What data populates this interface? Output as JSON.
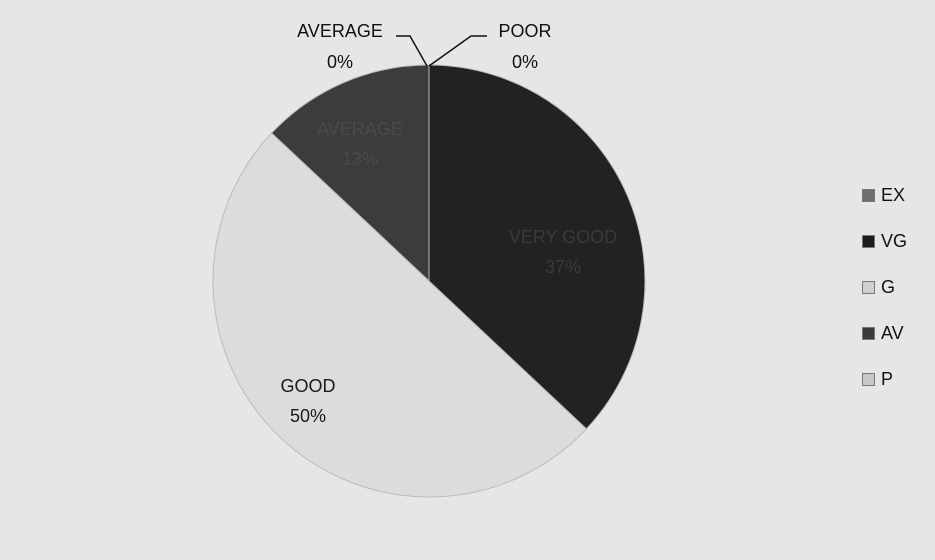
{
  "chart_data": {
    "type": "pie",
    "slices": [
      {
        "label": "AVERAGE",
        "value": 13,
        "value_label": "13%",
        "color": "#3c3c3c"
      },
      {
        "label": "GOOD",
        "value": 50,
        "value_label": "50%",
        "color": "#dcdcdc"
      },
      {
        "label": "VERY GOOD",
        "value": 37,
        "value_label": "37%",
        "color": "#222222"
      },
      {
        "label": "POOR",
        "value": 0,
        "value_label": "0%",
        "color": "#cccccc"
      },
      {
        "label": "AVERAGE",
        "value": 0,
        "value_label": "0%",
        "color": "#555555"
      }
    ],
    "legend": {
      "position": "right",
      "items": [
        {
          "label": "EX",
          "color": "#6e6e6e"
        },
        {
          "label": "VG",
          "color": "#1c1c1c"
        },
        {
          "label": "G",
          "color": "#d0d0d0"
        },
        {
          "label": "AV",
          "color": "#3a3a3a"
        },
        {
          "label": "P",
          "color": "#c8c8c8"
        }
      ]
    }
  }
}
